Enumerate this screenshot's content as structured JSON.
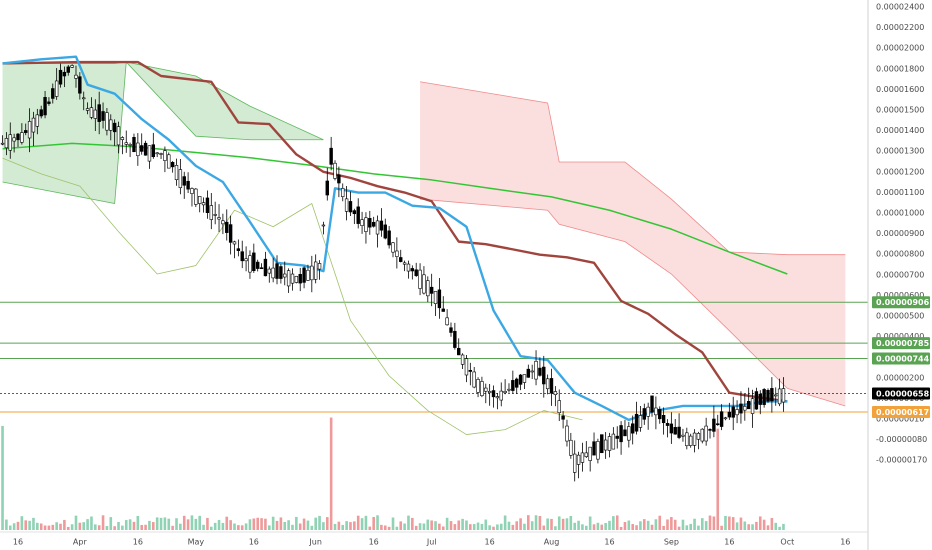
{
  "chart_data": {
    "type": "candlestick",
    "interval": "daily",
    "grid": false,
    "x_axis": {
      "ticks": [
        {
          "date": "2018-03-16",
          "label": "16"
        },
        {
          "date": "2018-04-01",
          "label": "Apr"
        },
        {
          "date": "2018-04-16",
          "label": "16"
        },
        {
          "date": "2018-05-01",
          "label": "May"
        },
        {
          "date": "2018-05-16",
          "label": "16"
        },
        {
          "date": "2018-06-01",
          "label": "Jun"
        },
        {
          "date": "2018-06-16",
          "label": "16"
        },
        {
          "date": "2018-07-01",
          "label": "Jul"
        },
        {
          "date": "2018-07-16",
          "label": "16"
        },
        {
          "date": "2018-08-01",
          "label": "Aug"
        },
        {
          "date": "2018-08-16",
          "label": "16"
        },
        {
          "date": "2018-09-01",
          "label": "Sep"
        },
        {
          "date": "2018-09-16",
          "label": "16"
        },
        {
          "date": "2018-10-01",
          "label": "Oct"
        },
        {
          "date": "2018-10-16",
          "label": "16"
        }
      ]
    },
    "price_axis": {
      "scale": "log",
      "tick_labels": [
        "0.00002400",
        "0.00002200",
        "0.00002000",
        "0.00001800",
        "0.00001600",
        "0.00001500",
        "0.00001400",
        "0.00001300",
        "0.00001200",
        "0.00001100",
        "0.00001000",
        "0.00000900",
        "0.00000800",
        "0.00000700",
        "0.00000600",
        "0.00000500",
        "0.00000400",
        "0.00000300",
        "0.00000200",
        "0.00000100",
        "0.00000010",
        "-0.00000080",
        "-0.00000170"
      ]
    },
    "horizontal_levels": [
      {
        "price": 9.06e-06,
        "label": "0.00000906",
        "color": "#5aa352"
      },
      {
        "price": 7.85e-06,
        "label": "0.00000785",
        "color": "#5aa352"
      },
      {
        "price": 7.44e-06,
        "label": "0.00000744",
        "color": "#5aa352"
      },
      {
        "price": 6.58e-06,
        "label": "0.00000658",
        "color": "#000000"
      },
      {
        "price": 6.17e-06,
        "label": "0.00000617",
        "color": "#f2a23a"
      }
    ],
    "series": {
      "price": [
        {
          "date": "2018-03-12",
          "c": 1.58e-05
        },
        {
          "date": "2018-03-17",
          "c": 1.62e-05
        },
        {
          "date": "2018-03-21",
          "c": 1.72e-05
        },
        {
          "date": "2018-03-24",
          "c": 1.82e-05
        },
        {
          "date": "2018-03-27",
          "c": 1.98e-05
        },
        {
          "date": "2018-03-30",
          "c": 2.07e-05
        },
        {
          "date": "2018-04-03",
          "c": 1.78e-05
        },
        {
          "date": "2018-04-08",
          "c": 1.72e-05
        },
        {
          "date": "2018-04-13",
          "c": 1.58e-05
        },
        {
          "date": "2018-04-18",
          "c": 1.54e-05
        },
        {
          "date": "2018-04-23",
          "c": 1.52e-05
        },
        {
          "date": "2018-04-28",
          "c": 1.38e-05
        },
        {
          "date": "2018-05-03",
          "c": 1.28e-05
        },
        {
          "date": "2018-05-08",
          "c": 1.2e-05
        },
        {
          "date": "2018-05-13",
          "c": 1.06e-05
        },
        {
          "date": "2018-05-18",
          "c": 1.02e-05
        },
        {
          "date": "2018-05-23",
          "c": 1e-05
        },
        {
          "date": "2018-05-28",
          "c": 9.8e-06
        },
        {
          "date": "2018-06-02",
          "c": 1.03e-05
        },
        {
          "date": "2018-06-05",
          "c": 1.5e-05
        },
        {
          "date": "2018-06-09",
          "c": 1.28e-05
        },
        {
          "date": "2018-06-13",
          "c": 1.2e-05
        },
        {
          "date": "2018-06-18",
          "c": 1.18e-05
        },
        {
          "date": "2018-06-23",
          "c": 1.05e-05
        },
        {
          "date": "2018-06-28",
          "c": 9.9e-06
        },
        {
          "date": "2018-07-03",
          "c": 9.1e-06
        },
        {
          "date": "2018-07-08",
          "c": 7.6e-06
        },
        {
          "date": "2018-07-13",
          "c": 6.8e-06
        },
        {
          "date": "2018-07-18",
          "c": 6.5e-06
        },
        {
          "date": "2018-07-23",
          "c": 6.8e-06
        },
        {
          "date": "2018-07-28",
          "c": 7.2e-06
        },
        {
          "date": "2018-08-02",
          "c": 6.6e-06
        },
        {
          "date": "2018-08-07",
          "c": 5.2e-06
        },
        {
          "date": "2018-08-12",
          "c": 5.4e-06
        },
        {
          "date": "2018-08-17",
          "c": 5.6e-06
        },
        {
          "date": "2018-08-22",
          "c": 5.8e-06
        },
        {
          "date": "2018-08-27",
          "c": 6.3e-06
        },
        {
          "date": "2018-09-01",
          "c": 5.8e-06
        },
        {
          "date": "2018-09-06",
          "c": 5.6e-06
        },
        {
          "date": "2018-09-11",
          "c": 5.8e-06
        },
        {
          "date": "2018-09-16",
          "c": 6.1e-06
        },
        {
          "date": "2018-09-21",
          "c": 6.3e-06
        },
        {
          "date": "2018-09-26",
          "c": 6.5e-06
        },
        {
          "date": "2018-10-01",
          "c": 6.6e-06
        }
      ],
      "conversion_line": [
        {
          "date": "2018-03-12",
          "v": 2.09e-05
        },
        {
          "date": "2018-03-22",
          "v": 2.12e-05
        },
        {
          "date": "2018-03-31",
          "v": 2.14e-05
        },
        {
          "date": "2018-04-03",
          "v": 1.94e-05
        },
        {
          "date": "2018-04-10",
          "v": 1.88e-05
        },
        {
          "date": "2018-04-17",
          "v": 1.72e-05
        },
        {
          "date": "2018-04-24",
          "v": 1.6e-05
        },
        {
          "date": "2018-05-01",
          "v": 1.46e-05
        },
        {
          "date": "2018-05-08",
          "v": 1.38e-05
        },
        {
          "date": "2018-05-15",
          "v": 1.2e-05
        },
        {
          "date": "2018-05-22",
          "v": 1.04e-05
        },
        {
          "date": "2018-05-29",
          "v": 1.03e-05
        },
        {
          "date": "2018-06-03",
          "v": 1.01e-05
        },
        {
          "date": "2018-06-06",
          "v": 1.35e-05
        },
        {
          "date": "2018-06-12",
          "v": 1.33e-05
        },
        {
          "date": "2018-06-19",
          "v": 1.33e-05
        },
        {
          "date": "2018-06-26",
          "v": 1.27e-05
        },
        {
          "date": "2018-07-03",
          "v": 1.26e-05
        },
        {
          "date": "2018-07-10",
          "v": 1.18e-05
        },
        {
          "date": "2018-07-17",
          "v": 8.8e-06
        },
        {
          "date": "2018-07-24",
          "v": 7.5e-06
        },
        {
          "date": "2018-07-31",
          "v": 7.4e-06
        },
        {
          "date": "2018-08-07",
          "v": 6.6e-06
        },
        {
          "date": "2018-08-14",
          "v": 6.3e-06
        },
        {
          "date": "2018-08-21",
          "v": 6e-06
        },
        {
          "date": "2018-08-28",
          "v": 6.2e-06
        },
        {
          "date": "2018-09-04",
          "v": 6.3e-06
        },
        {
          "date": "2018-09-11",
          "v": 6.3e-06
        },
        {
          "date": "2018-09-18",
          "v": 6.3e-06
        },
        {
          "date": "2018-09-25",
          "v": 6.4e-06
        },
        {
          "date": "2018-10-01",
          "v": 6.4e-06
        }
      ],
      "base_line": [
        {
          "date": "2018-03-12",
          "v": 2.09e-05
        },
        {
          "date": "2018-04-01",
          "v": 2.1e-05
        },
        {
          "date": "2018-04-16",
          "v": 2.1e-05
        },
        {
          "date": "2018-04-22",
          "v": 2e-05
        },
        {
          "date": "2018-05-05",
          "v": 1.96e-05
        },
        {
          "date": "2018-05-12",
          "v": 1.7e-05
        },
        {
          "date": "2018-05-20",
          "v": 1.69e-05
        },
        {
          "date": "2018-05-27",
          "v": 1.52e-05
        },
        {
          "date": "2018-06-03",
          "v": 1.43e-05
        },
        {
          "date": "2018-06-10",
          "v": 1.4e-05
        },
        {
          "date": "2018-06-17",
          "v": 1.36e-05
        },
        {
          "date": "2018-06-24",
          "v": 1.33e-05
        },
        {
          "date": "2018-07-01",
          "v": 1.29e-05
        },
        {
          "date": "2018-07-08",
          "v": 1.12e-05
        },
        {
          "date": "2018-07-15",
          "v": 1.11e-05
        },
        {
          "date": "2018-07-22",
          "v": 1.09e-05
        },
        {
          "date": "2018-07-29",
          "v": 1.07e-05
        },
        {
          "date": "2018-08-05",
          "v": 1.06e-05
        },
        {
          "date": "2018-08-12",
          "v": 1.04e-05
        },
        {
          "date": "2018-08-19",
          "v": 9.1e-06
        },
        {
          "date": "2018-08-26",
          "v": 8.7e-06
        },
        {
          "date": "2018-09-02",
          "v": 8.1e-06
        },
        {
          "date": "2018-09-09",
          "v": 7.6e-06
        },
        {
          "date": "2018-09-16",
          "v": 6.6e-06
        },
        {
          "date": "2018-09-23",
          "v": 6.5e-06
        },
        {
          "date": "2018-10-01",
          "v": 6.4e-06
        }
      ],
      "sma_200": [
        {
          "date": "2018-03-12",
          "v": 1.55e-05
        },
        {
          "date": "2018-03-30",
          "v": 1.58e-05
        },
        {
          "date": "2018-04-16",
          "v": 1.56e-05
        },
        {
          "date": "2018-05-01",
          "v": 1.53e-05
        },
        {
          "date": "2018-05-16",
          "v": 1.5e-05
        },
        {
          "date": "2018-06-01",
          "v": 1.46e-05
        },
        {
          "date": "2018-06-16",
          "v": 1.42e-05
        },
        {
          "date": "2018-07-01",
          "v": 1.39e-05
        },
        {
          "date": "2018-07-16",
          "v": 1.35e-05
        },
        {
          "date": "2018-08-01",
          "v": 1.31e-05
        },
        {
          "date": "2018-08-16",
          "v": 1.25e-05
        },
        {
          "date": "2018-09-01",
          "v": 1.17e-05
        },
        {
          "date": "2018-09-16",
          "v": 1.08e-05
        },
        {
          "date": "2018-10-01",
          "v": 1e-05
        }
      ],
      "lagging_span": [
        {
          "date": "2018-03-12",
          "v": 1.5e-05
        },
        {
          "date": "2018-03-22",
          "v": 1.42e-05
        },
        {
          "date": "2018-04-01",
          "v": 1.36e-05
        },
        {
          "date": "2018-04-11",
          "v": 1.16e-05
        },
        {
          "date": "2018-04-21",
          "v": 1e-05
        },
        {
          "date": "2018-05-01",
          "v": 1.03e-05
        },
        {
          "date": "2018-05-11",
          "v": 1.25e-05
        },
        {
          "date": "2018-05-21",
          "v": 1.18e-05
        },
        {
          "date": "2018-05-31",
          "v": 1.28e-05
        },
        {
          "date": "2018-06-10",
          "v": 8.5e-06
        },
        {
          "date": "2018-06-20",
          "v": 7e-06
        },
        {
          "date": "2018-06-30",
          "v": 6.2e-06
        },
        {
          "date": "2018-07-10",
          "v": 5.7e-06
        },
        {
          "date": "2018-07-20",
          "v": 5.8e-06
        },
        {
          "date": "2018-07-30",
          "v": 6.2e-06
        },
        {
          "date": "2018-08-09",
          "v": 6e-06
        }
      ],
      "cloud_bullish": [
        {
          "date": "2018-03-12",
          "a": 2.09e-05,
          "b": 1.38e-05
        },
        {
          "date": "2018-04-10",
          "a": 2.09e-05,
          "b": 1.28e-05
        },
        {
          "date": "2018-04-13",
          "a": 2.1e-05,
          "b": 2.1e-05
        },
        {
          "date": "2018-05-01",
          "a": 2e-05,
          "b": 1.62e-05
        },
        {
          "date": "2018-05-15",
          "a": 1.8e-05,
          "b": 1.6e-05
        },
        {
          "date": "2018-06-03",
          "a": 1.6e-05,
          "b": 1.6e-05
        }
      ],
      "cloud_bearish": [
        {
          "date": "2018-06-28",
          "a": 1.3e-05,
          "b": 1.96e-05
        },
        {
          "date": "2018-07-31",
          "a": 1.25e-05,
          "b": 1.82e-05
        },
        {
          "date": "2018-08-03",
          "a": 1.19e-05,
          "b": 1.48e-05
        },
        {
          "date": "2018-08-20",
          "a": 1.12e-05,
          "b": 1.48e-05
        },
        {
          "date": "2018-09-01",
          "a": 1e-05,
          "b": 1.3e-05
        },
        {
          "date": "2018-09-16",
          "a": 8.2e-06,
          "b": 1.08e-05
        },
        {
          "date": "2018-10-01",
          "a": 6.7e-06,
          "b": 1.07e-05
        },
        {
          "date": "2018-10-16",
          "a": 6.3e-06,
          "b": 1.07e-05
        }
      ]
    },
    "colors": {
      "bull_candle": "#ffffff",
      "bear_candle": "#000000",
      "conversion_line": "#3ba8e4",
      "base_line": "#a0453e",
      "sma_200": "#34c534",
      "lagging_span": "#9fc26a",
      "cloud_bullish": "#5fb85f",
      "cloud_bearish": "#f08a8a",
      "volume_bull": "#8fd2b4",
      "volume_bear": "#ef9a9a"
    }
  }
}
